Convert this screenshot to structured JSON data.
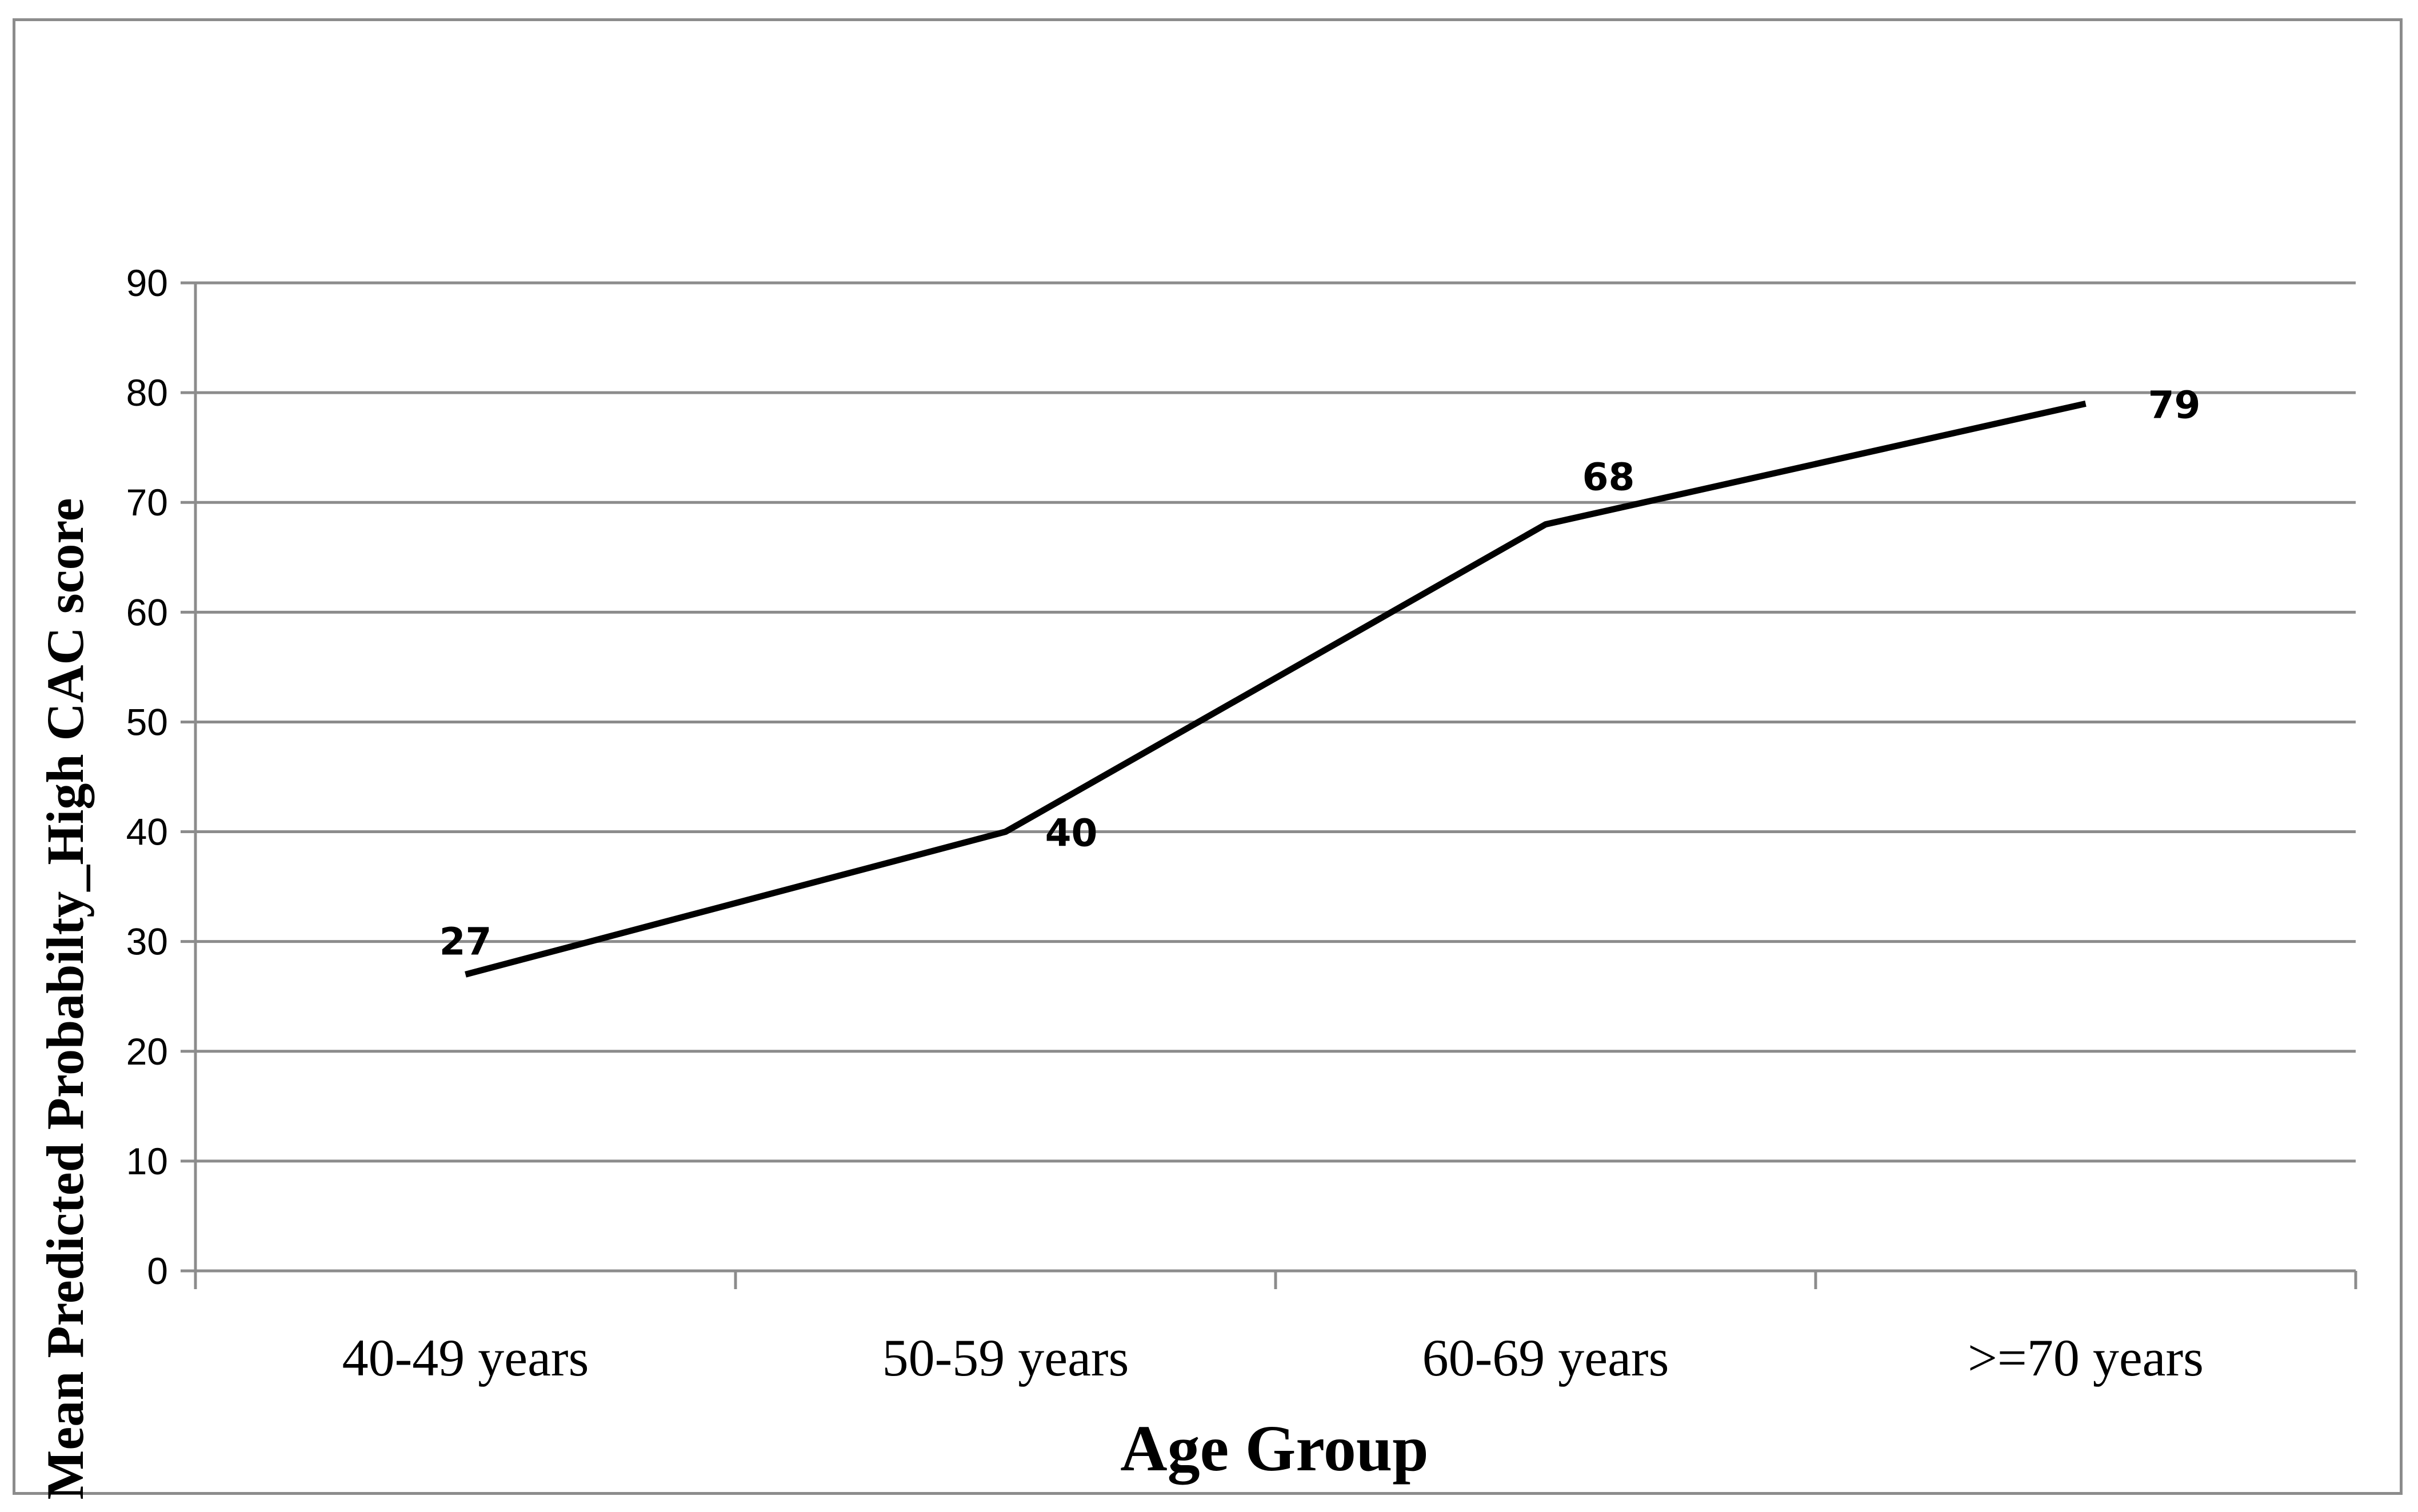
{
  "chart_data": {
    "type": "line",
    "title": "",
    "xlabel": "Age Group",
    "ylabel": "Mean Predicted Probabilty_High CAC score",
    "categories": [
      "40-49 years",
      "50-59 years",
      "60-69 years",
      ">=70 years"
    ],
    "series": [
      {
        "values": [
          27,
          40,
          68,
          79
        ]
      }
    ],
    "data_labels": [
      "27",
      "40",
      "68",
      "79"
    ],
    "ylim": [
      0,
      90
    ],
    "yticks": [
      "0",
      "10",
      "20",
      "30",
      "40",
      "50",
      "60",
      "70",
      "80",
      "90"
    ],
    "grid": true,
    "legend": "none",
    "line_color": "#000000",
    "grid_color": "#8c8c8c"
  }
}
